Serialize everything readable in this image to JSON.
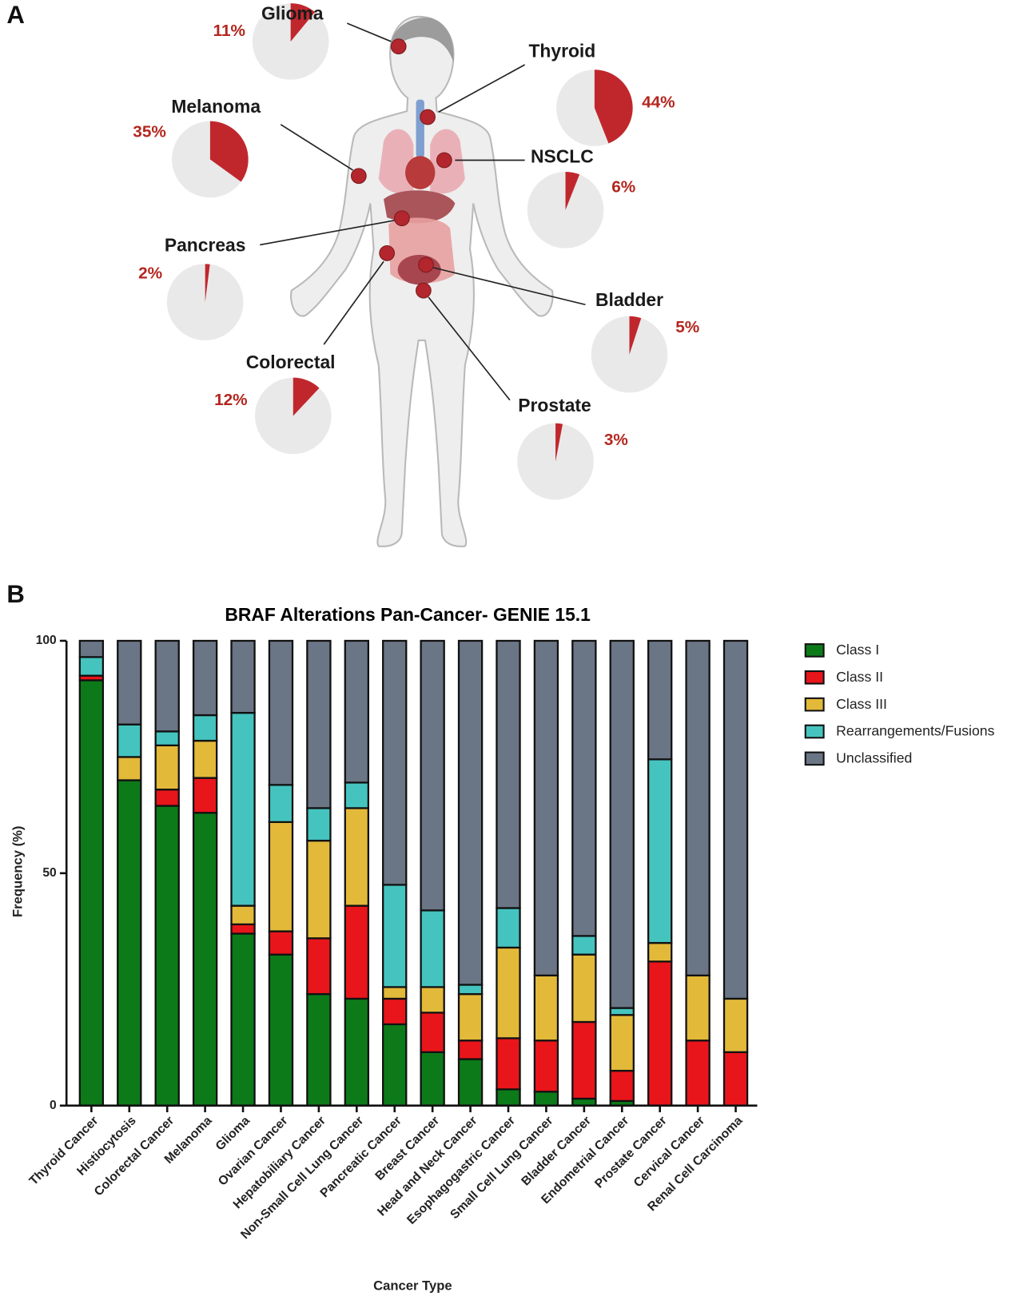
{
  "chart_data": [
    {
      "type": "pie-map",
      "panel": "A",
      "categories": [
        "Glioma",
        "Thyroid",
        "Melanoma",
        "NSCLC",
        "Pancreas",
        "Bladder",
        "Colorectal",
        "Prostate"
      ],
      "values": [
        11,
        44,
        35,
        6,
        2,
        5,
        12,
        3
      ],
      "value_labels": [
        "11%",
        "44%",
        "35%",
        "6%",
        "2%",
        "5%",
        "12%",
        "3%"
      ],
      "color": "#c0272d"
    },
    {
      "type": "stacked-bar",
      "panel": "B",
      "title": "BRAF Alterations Pan-Cancer- GENIE 15.1",
      "xlabel": "Cancer Type",
      "ylabel": "Frequency (%)",
      "categories": [
        "Thyroid Cancer",
        "Histiocytosis",
        "Colorectal Cancer",
        "Melanoma",
        "Glioma",
        "Ovarian Cancer",
        "Hepatobiliary Cancer",
        "Non-Small Cell Lung Cancer",
        "Pancreatic Cancer",
        "Breast Cancer",
        "Head and Neck Cancer",
        "Esophagogastric Cancer",
        "Small Cell Lung Cancer",
        "Bladder Cancer",
        "Endometrial Cancer",
        "Prostate Cancer",
        "Cervical Cancer",
        "Renal Cell Carcinoma"
      ],
      "series": [
        {
          "name": "Class I",
          "color": "#0d7a1a",
          "values": [
            91.5,
            70,
            64.5,
            63,
            37,
            32.5,
            24,
            23,
            17.5,
            11.5,
            10,
            3.5,
            3,
            1.5,
            1,
            0,
            0,
            0
          ]
        },
        {
          "name": "Class II",
          "color": "#e8151b",
          "values": [
            1,
            0,
            3.5,
            7.5,
            2,
            5,
            12,
            20,
            5.5,
            8.5,
            4,
            11,
            11,
            16.5,
            6.5,
            31,
            14,
            11.5
          ]
        },
        {
          "name": "Class III",
          "color": "#e3b93a",
          "values": [
            0,
            5,
            9.5,
            8,
            4,
            23.5,
            21,
            21,
            2.5,
            5.5,
            10,
            19.5,
            14,
            14.5,
            12,
            4,
            14,
            11.5
          ]
        },
        {
          "name": "Rearrangements/Fusions",
          "color": "#45c4bf",
          "values": [
            4,
            7,
            3,
            5.5,
            41.5,
            8,
            7,
            5.5,
            22,
            16.5,
            2,
            8.5,
            0,
            4,
            1.5,
            39.5,
            0,
            0
          ]
        },
        {
          "name": "Unclassified",
          "color": "#6a7585",
          "values": [
            3.5,
            18,
            19.5,
            16,
            15.5,
            31,
            36,
            30.5,
            52.5,
            58,
            74,
            57.5,
            72,
            63.5,
            79,
            25.5,
            72,
            77
          ]
        }
      ],
      "ylim": [
        0,
        100
      ],
      "yticks": [
        0,
        50,
        100
      ],
      "legend": "right"
    }
  ]
}
